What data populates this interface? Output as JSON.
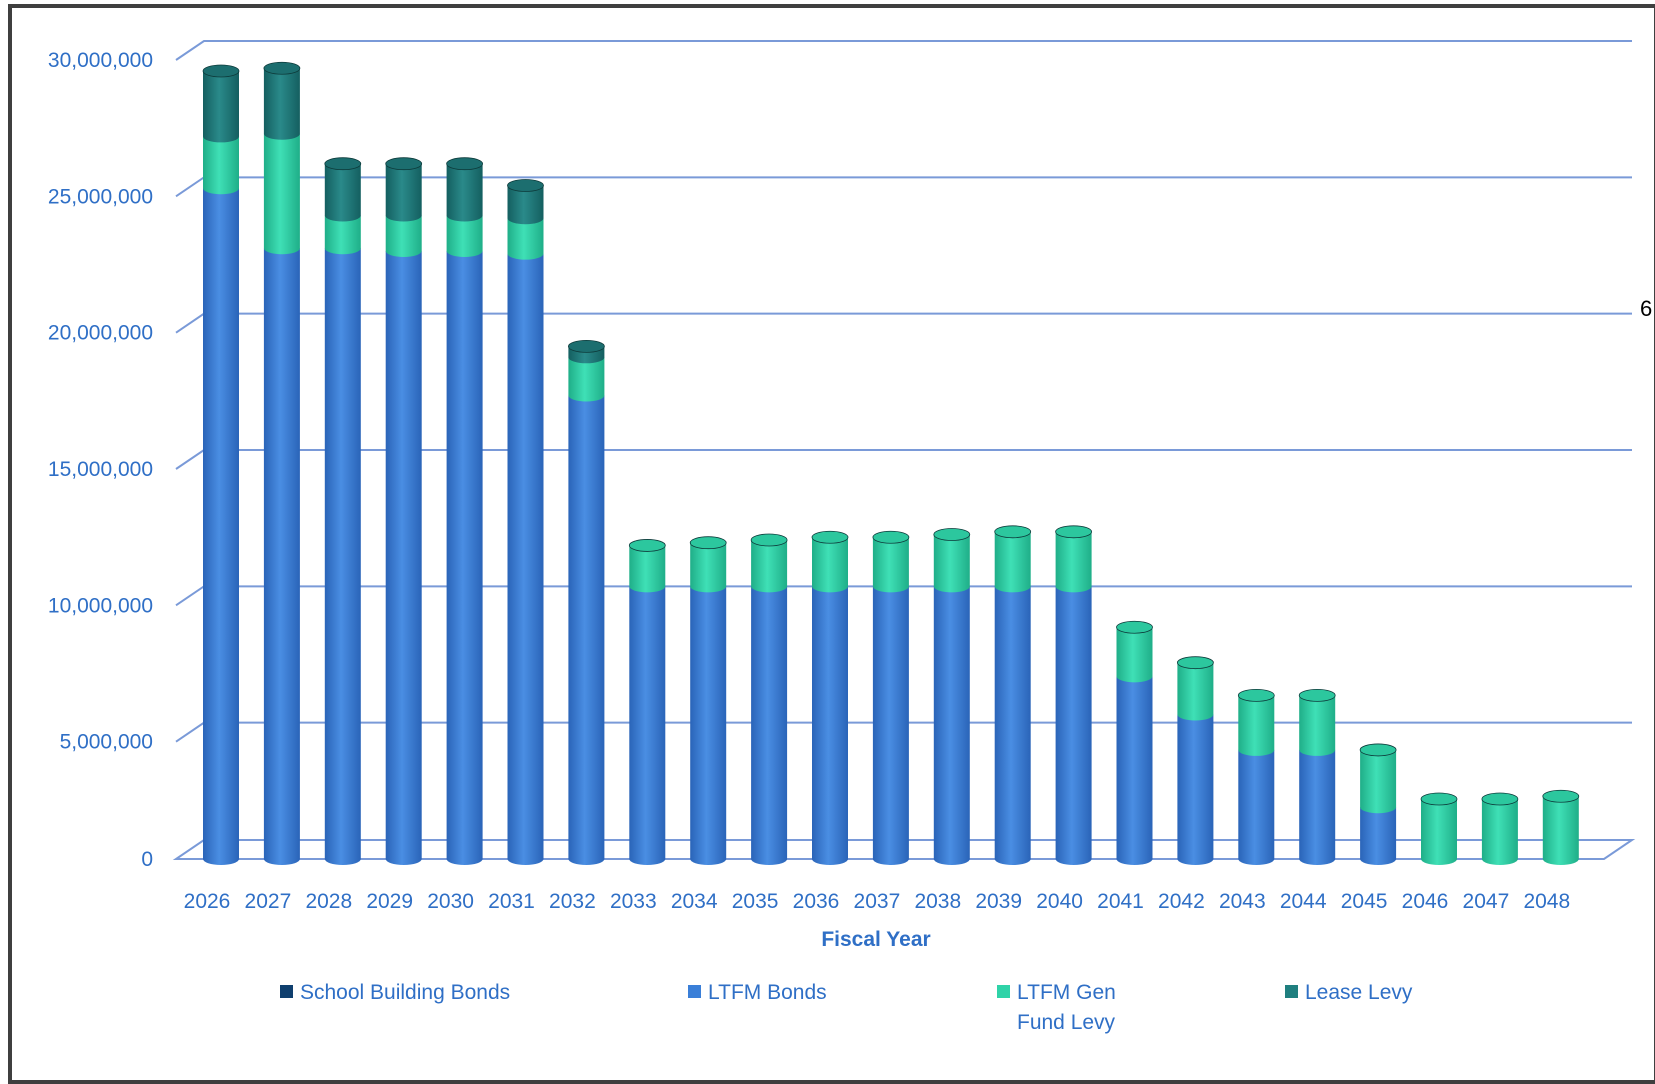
{
  "chart_data": {
    "type": "bar",
    "stacked": true,
    "xlabel": "Fiscal Year",
    "ylabel": "",
    "ylim": [
      0,
      30000000
    ],
    "yticks": [
      0,
      5000000,
      10000000,
      15000000,
      20000000,
      25000000,
      30000000
    ],
    "ytick_labels": [
      "0",
      "5,000,000",
      "10,000,000",
      "15,000,000",
      "20,000,000",
      "25,000,000",
      "30,000,000"
    ],
    "grid": true,
    "legend_position": "bottom",
    "categories": [
      "2026",
      "2027",
      "2028",
      "2029",
      "2030",
      "2031",
      "2032",
      "2033",
      "2034",
      "2035",
      "2036",
      "2037",
      "2038",
      "2039",
      "2040",
      "2041",
      "2042",
      "2043",
      "2044",
      "2045",
      "2046",
      "2047",
      "2048"
    ],
    "series": [
      {
        "name": "School Building Bonds",
        "color": "#0f3f6e",
        "values": [
          0,
          0,
          0,
          0,
          0,
          0,
          0,
          0,
          0,
          0,
          0,
          0,
          0,
          0,
          0,
          0,
          0,
          0,
          0,
          0,
          0,
          0,
          0
        ]
      },
      {
        "name": "LTFM Bonds",
        "color": "#3a7fd8",
        "values": [
          24600000,
          22400000,
          22400000,
          22300000,
          22300000,
          22200000,
          17000000,
          10000000,
          10000000,
          10000000,
          10000000,
          10000000,
          10000000,
          10000000,
          10000000,
          6700000,
          5300000,
          4000000,
          4000000,
          1900000,
          0,
          0,
          0
        ]
      },
      {
        "name": "LTFM Gen\nFund Levy",
        "color": "#2fd3a8",
        "values": [
          1900000,
          4200000,
          1200000,
          1300000,
          1300000,
          1300000,
          1400000,
          1500000,
          1600000,
          1700000,
          1800000,
          1800000,
          1900000,
          2000000,
          2000000,
          1800000,
          1900000,
          2000000,
          2000000,
          2100000,
          2200000,
          2200000,
          2300000
        ]
      },
      {
        "name": "Lease Levy",
        "color": "#1f7f7f",
        "values": [
          2400000,
          2400000,
          1900000,
          1900000,
          1900000,
          1200000,
          400000,
          0,
          0,
          0,
          0,
          0,
          0,
          0,
          0,
          0,
          0,
          0,
          0,
          0,
          0,
          0,
          0
        ]
      }
    ]
  },
  "side_label": "6"
}
